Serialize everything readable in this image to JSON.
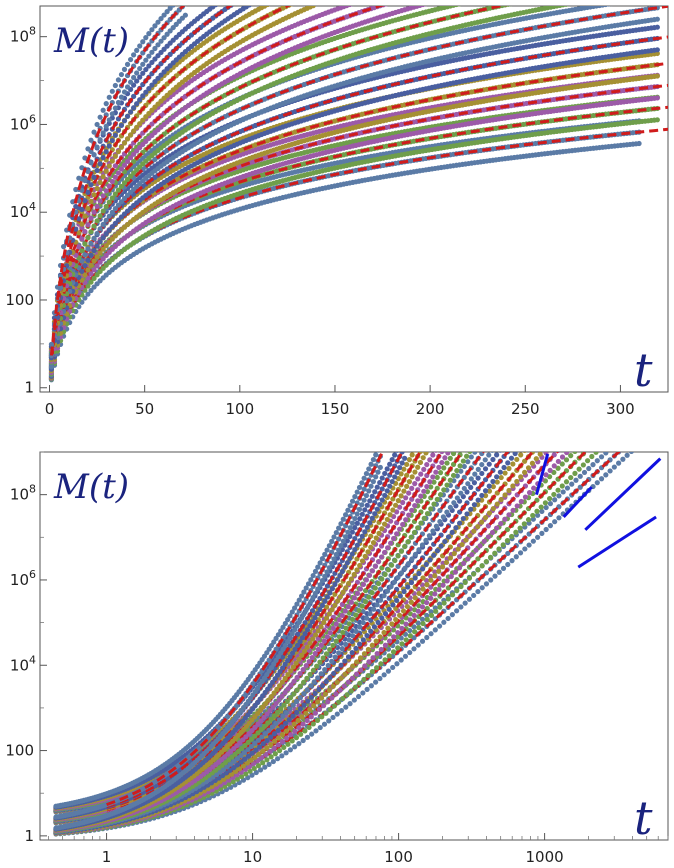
{
  "chart_data": [
    {
      "type": "scatter",
      "x_scale": "linear",
      "y_scale": "log",
      "xlim": [
        -5,
        325
      ],
      "ylim": [
        0.8,
        500000000
      ],
      "x_ticks": [
        0,
        50,
        100,
        150,
        200,
        250,
        300
      ],
      "x_tick_labels": [
        "0",
        "50",
        "100",
        "150",
        "200",
        "250",
        "300"
      ],
      "y_ticks": [
        1,
        100,
        10000,
        1000000,
        100000000
      ],
      "y_tick_labels": [
        {
          "base": "1",
          "exp": ""
        },
        {
          "base": "100",
          "exp": ""
        },
        {
          "base": "10",
          "exp": "4"
        },
        {
          "base": "10",
          "exp": "6"
        },
        {
          "base": "10",
          "exp": "8"
        }
      ],
      "ylabel": "M(t)",
      "xlabel": "t",
      "series_colors": [
        "#5b7ba6",
        "#6f9e4b",
        "#9c5aa8",
        "#a59033",
        "#4a5fa0"
      ],
      "fit_color": "#d01c1c",
      "series": [
        {
          "exponent": 2.3,
          "tmax": 310
        },
        {
          "exponent": 2.55,
          "tmax": 320
        },
        {
          "exponent": 2.8,
          "tmax": 320
        },
        {
          "exponent": 3.05,
          "tmax": 320
        },
        {
          "exponent": 3.35,
          "tmax": 320
        },
        {
          "exponent": 3.7,
          "tmax": 320
        },
        {
          "exponent": 4.05,
          "tmax": 320
        },
        {
          "exponent": 4.45,
          "tmax": 240
        },
        {
          "exponent": 4.95,
          "tmax": 140
        },
        {
          "exponent": 5.45,
          "tmax": 110
        },
        {
          "exponent": 6.1,
          "tmax": 72
        }
      ]
    },
    {
      "type": "scatter",
      "x_scale": "log",
      "y_scale": "log",
      "xlim": [
        0.35,
        7000
      ],
      "ylim": [
        0.8,
        1000000000
      ],
      "x_ticks": [
        1,
        10,
        100,
        1000
      ],
      "x_tick_labels": [
        "1",
        "10",
        "100",
        "1000"
      ],
      "y_ticks": [
        1,
        100,
        10000,
        1000000,
        100000000
      ],
      "y_tick_labels": [
        {
          "base": "1",
          "exp": ""
        },
        {
          "base": "100",
          "exp": ""
        },
        {
          "base": "10",
          "exp": "4"
        },
        {
          "base": "10",
          "exp": "6"
        },
        {
          "base": "10",
          "exp": "8"
        }
      ],
      "ylabel": "M(t)",
      "xlabel": "t",
      "series_colors": [
        "#5b7ba6",
        "#6f9e4b",
        "#9c5aa8",
        "#a59033",
        "#4a5fa0"
      ],
      "fit_color": "#d01c1c",
      "ref_line_color": "#1010e0",
      "series": [
        {
          "exponent": 2.3,
          "tmax": 5500
        },
        {
          "exponent": 2.55,
          "tmax": 5000
        },
        {
          "exponent": 2.8,
          "tmax": 4000
        },
        {
          "exponent": 3.05,
          "tmax": 2500
        },
        {
          "exponent": 3.35,
          "tmax": 1600
        },
        {
          "exponent": 3.7,
          "tmax": 1000
        },
        {
          "exponent": 4.05,
          "tmax": 600
        },
        {
          "exponent": 4.45,
          "tmax": 350
        },
        {
          "exponent": 4.95,
          "tmax": 200
        },
        {
          "exponent": 5.45,
          "tmax": 110
        },
        {
          "exponent": 6.1,
          "tmax": 75
        }
      ],
      "reference_lines": [
        {
          "x": [
            1700,
            5800
          ],
          "y": [
            2000000,
            30000000
          ]
        },
        {
          "x": [
            1900,
            6200
          ],
          "y": [
            15000000,
            700000000
          ]
        },
        {
          "x": [
            1350,
            2100
          ],
          "y": [
            30000000,
            150000000
          ]
        },
        {
          "x": [
            880,
            1050
          ],
          "y": [
            100000000,
            900000000
          ]
        }
      ]
    }
  ]
}
